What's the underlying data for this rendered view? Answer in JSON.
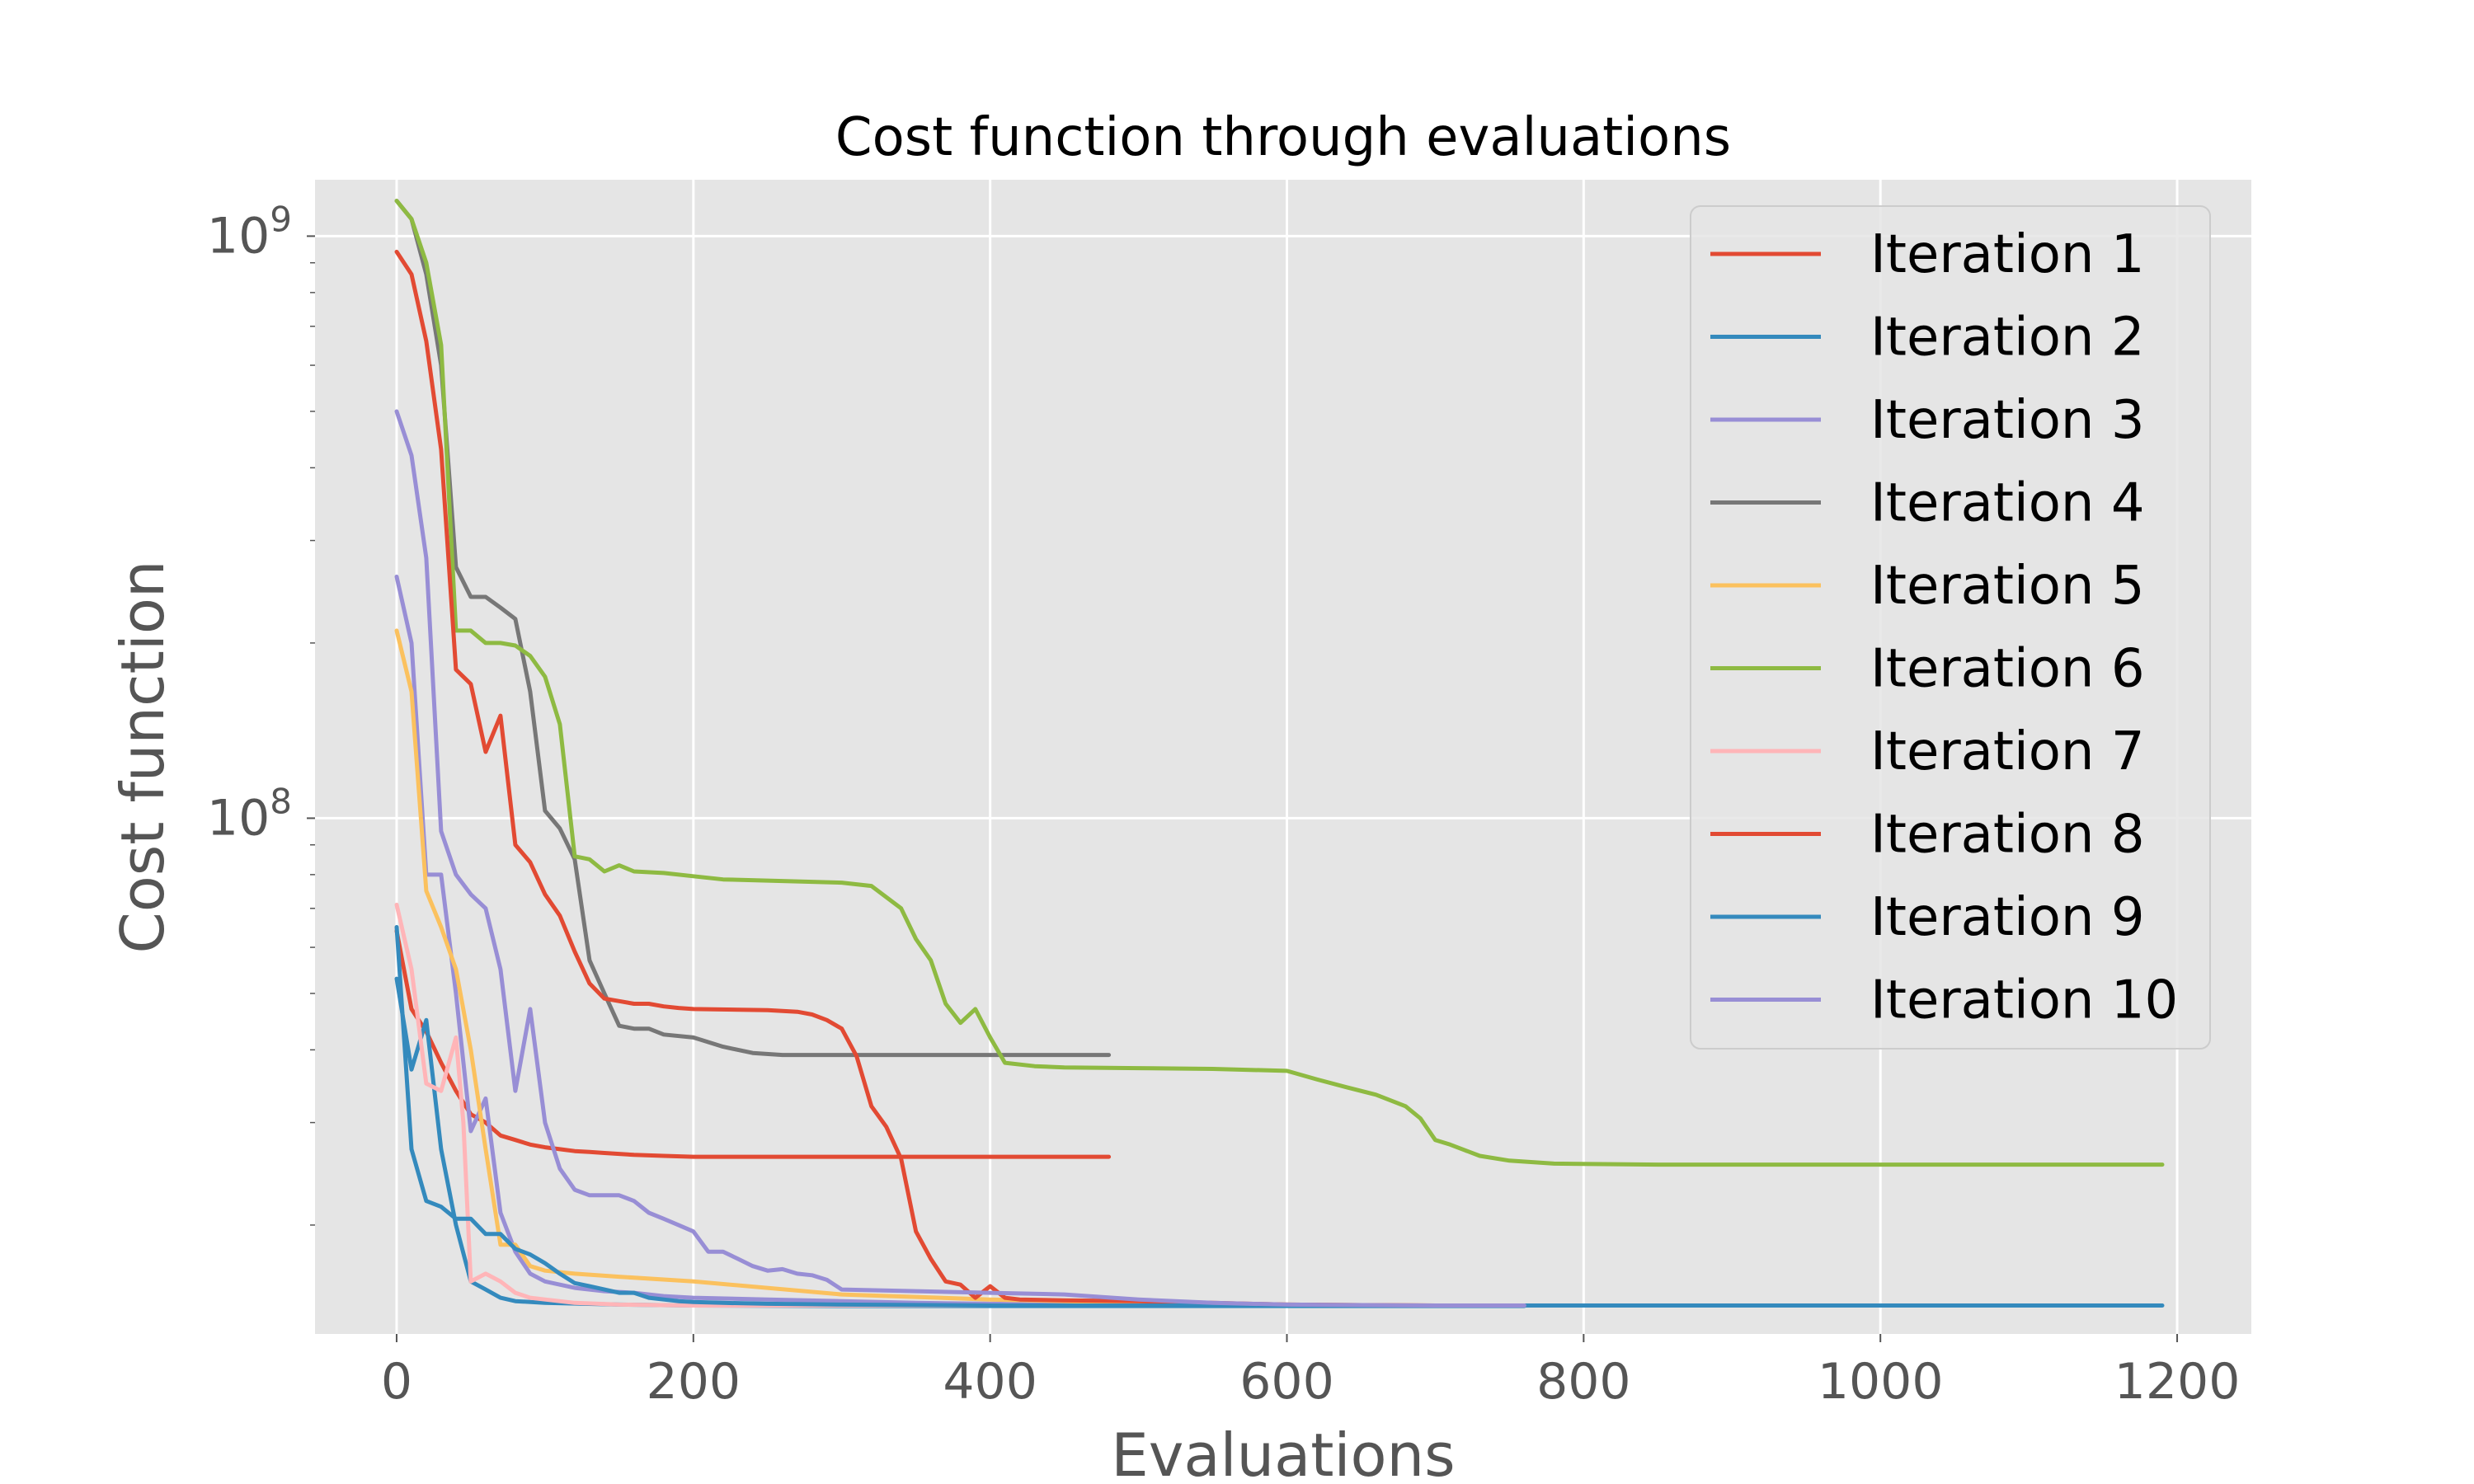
{
  "chart_data": {
    "type": "line",
    "title": "Cost function through evaluations",
    "xlabel": "Evaluations",
    "ylabel": "Cost function",
    "xlim": [
      -55,
      1250
    ],
    "ylim": [
      13000000,
      1250000000
    ],
    "yscale": "log",
    "grid": true,
    "legend_position": "top-right",
    "xticks": [
      {
        "value": 0,
        "label": "0"
      },
      {
        "value": 200,
        "label": "200"
      },
      {
        "value": 400,
        "label": "400"
      },
      {
        "value": 600,
        "label": "600"
      },
      {
        "value": 800,
        "label": "800"
      },
      {
        "value": 1000,
        "label": "1000"
      },
      {
        "value": 1200,
        "label": "1200"
      }
    ],
    "yticks": [
      {
        "value": 100000000,
        "base": "10",
        "exp": "8"
      },
      {
        "value": 1000000000,
        "base": "10",
        "exp": "9"
      }
    ],
    "series": [
      {
        "name": "Iteration 1",
        "color": "#E24A33",
        "x": [
          0,
          10,
          20,
          30,
          40,
          50,
          60,
          70,
          80,
          90,
          100,
          110,
          120,
          130,
          140,
          150,
          160,
          180,
          200,
          250,
          300,
          350,
          400,
          450,
          480
        ],
        "y": [
          64000000,
          47000000,
          43000000,
          38000000,
          34000000,
          31000000,
          30000000,
          28500000,
          28000000,
          27500000,
          27200000,
          27000000,
          26800000,
          26700000,
          26600000,
          26500000,
          26400000,
          26300000,
          26200000,
          26200000,
          26200000,
          26200000,
          26200000,
          26200000,
          26200000
        ]
      },
      {
        "name": "Iteration 2",
        "color": "#348ABD",
        "x": [
          0,
          10,
          20,
          30,
          40,
          50,
          60,
          70,
          80,
          100,
          150,
          200,
          300,
          400,
          500,
          600,
          700,
          760
        ],
        "y": [
          53000000,
          37000000,
          45000000,
          27000000,
          20000000,
          16000000,
          15500000,
          15000000,
          14800000,
          14700000,
          14600000,
          14550000,
          14520000,
          14520000,
          14520000,
          14520000,
          14520000,
          14520000
        ]
      },
      {
        "name": "Iteration 3",
        "color": "#988ED5",
        "x": [
          0,
          10,
          20,
          30,
          40,
          50,
          60,
          70,
          80,
          90,
          100,
          110,
          120,
          140,
          160,
          180,
          200,
          250,
          300,
          350,
          400,
          450,
          490
        ],
        "y": [
          260000000,
          200000000,
          80000000,
          80000000,
          50000000,
          29000000,
          33000000,
          21000000,
          18000000,
          16500000,
          16000000,
          15800000,
          15600000,
          15400000,
          15300000,
          15100000,
          15000000,
          14900000,
          14800000,
          14700000,
          14650000,
          14600000,
          14550000
        ]
      },
      {
        "name": "Iteration 4",
        "color": "#777777",
        "x": [
          0,
          10,
          20,
          30,
          40,
          50,
          60,
          70,
          80,
          90,
          100,
          110,
          120,
          130,
          140,
          150,
          160,
          170,
          180,
          200,
          220,
          240,
          260,
          300,
          350,
          400,
          450,
          480
        ],
        "y": [
          1150000000,
          1070000000,
          860000000,
          600000000,
          270000000,
          240000000,
          240000000,
          230000000,
          220000000,
          165000000,
          103000000,
          96000000,
          85000000,
          57000000,
          50000000,
          44000000,
          43500000,
          43500000,
          42500000,
          42000000,
          40500000,
          39500000,
          39200000,
          39200000,
          39200000,
          39200000,
          39200000,
          39200000
        ]
      },
      {
        "name": "Iteration 5",
        "color": "#FBC15E",
        "x": [
          0,
          10,
          20,
          30,
          40,
          50,
          60,
          70,
          80,
          90,
          100,
          120,
          150,
          200,
          300,
          400,
          500,
          600,
          700,
          760
        ],
        "y": [
          210000000,
          165000000,
          75000000,
          65000000,
          55000000,
          40000000,
          27000000,
          18500000,
          18500000,
          17000000,
          16700000,
          16500000,
          16300000,
          16000000,
          15200000,
          14900000,
          14700000,
          14600000,
          14550000,
          14550000
        ]
      },
      {
        "name": "Iteration 6",
        "color": "#8EBA42",
        "x": [
          0,
          10,
          20,
          30,
          40,
          50,
          60,
          70,
          80,
          90,
          100,
          110,
          120,
          130,
          140,
          150,
          160,
          180,
          200,
          220,
          260,
          300,
          320,
          340,
          350,
          360,
          370,
          380,
          390,
          400,
          410,
          430,
          450,
          500,
          550,
          600,
          620,
          640,
          660,
          680,
          690,
          700,
          710,
          730,
          750,
          780,
          850,
          1000,
          1190
        ],
        "y": [
          1150000000,
          1070000000,
          900000000,
          650000000,
          210000000,
          210000000,
          200000000,
          200000000,
          198000000,
          190000000,
          175000000,
          145000000,
          86000000,
          85000000,
          81000000,
          83000000,
          81000000,
          80500000,
          79500000,
          78500000,
          78000000,
          77500000,
          76500000,
          70000000,
          62000000,
          57000000,
          48000000,
          44500000,
          47000000,
          42000000,
          38000000,
          37500000,
          37300000,
          37200000,
          37100000,
          36800000,
          35600000,
          34500000,
          33500000,
          32000000,
          30500000,
          28000000,
          27500000,
          26300000,
          25800000,
          25500000,
          25400000,
          25400000,
          25400000
        ]
      },
      {
        "name": "Iteration 7",
        "color": "#FFB5B8",
        "x": [
          0,
          10,
          20,
          30,
          40,
          45,
          50,
          60,
          70,
          80,
          90,
          100,
          120,
          150,
          200,
          300,
          400,
          500,
          600,
          700,
          760
        ],
        "y": [
          71000000,
          55000000,
          35000000,
          34000000,
          42000000,
          30000000,
          16000000,
          16500000,
          16000000,
          15300000,
          15000000,
          14900000,
          14700000,
          14600000,
          14550000,
          14550000,
          14550000,
          14550000,
          14550000,
          14550000,
          14550000
        ]
      },
      {
        "name": "Iteration 8",
        "color": "#E24A33",
        "x": [
          0,
          10,
          20,
          30,
          40,
          50,
          60,
          70,
          80,
          90,
          100,
          110,
          120,
          130,
          140,
          150,
          160,
          170,
          180,
          190,
          200,
          250,
          270,
          280,
          290,
          300,
          310,
          320,
          330,
          340,
          350,
          360,
          370,
          380,
          390,
          400,
          410,
          420,
          450,
          500,
          550,
          600,
          700,
          760
        ],
        "y": [
          940000000,
          860000000,
          660000000,
          430000000,
          180000000,
          170000000,
          130000000,
          150000000,
          90000000,
          84000000,
          74000000,
          68000000,
          59000000,
          52000000,
          49000000,
          48500000,
          48000000,
          48000000,
          47500000,
          47200000,
          47000000,
          46800000,
          46500000,
          46000000,
          45000000,
          43500000,
          39000000,
          32000000,
          29500000,
          26000000,
          19500000,
          17500000,
          16000000,
          15800000,
          15000000,
          15700000,
          15000000,
          14900000,
          14850000,
          14800000,
          14700000,
          14600000,
          14550000,
          14550000
        ]
      },
      {
        "name": "Iteration 9",
        "color": "#348ABD",
        "x": [
          0,
          10,
          20,
          30,
          40,
          50,
          60,
          70,
          80,
          90,
          100,
          110,
          120,
          130,
          140,
          150,
          160,
          170,
          180,
          190,
          200,
          220,
          250,
          300,
          400,
          500,
          600,
          800,
          1000,
          1190
        ],
        "y": [
          65000000,
          27000000,
          22000000,
          21500000,
          20500000,
          20500000,
          19300000,
          19300000,
          18200000,
          17800000,
          17200000,
          16500000,
          15900000,
          15700000,
          15500000,
          15300000,
          15300000,
          15000000,
          14900000,
          14800000,
          14750000,
          14700000,
          14650000,
          14600000,
          14550000,
          14550000,
          14550000,
          14550000,
          14550000,
          14550000
        ]
      },
      {
        "name": "Iteration 10",
        "color": "#988ED5",
        "x": [
          0,
          10,
          20,
          30,
          40,
          50,
          60,
          70,
          80,
          90,
          100,
          110,
          120,
          130,
          140,
          150,
          160,
          170,
          180,
          190,
          200,
          210,
          220,
          230,
          240,
          250,
          260,
          270,
          280,
          290,
          300,
          350,
          400,
          450,
          500,
          550,
          600,
          700,
          760
        ],
        "y": [
          500000000,
          420000000,
          280000000,
          95000000,
          80000000,
          74000000,
          70000000,
          55000000,
          34000000,
          47000000,
          30000000,
          25000000,
          23000000,
          22500000,
          22500000,
          22500000,
          22000000,
          21000000,
          20500000,
          20000000,
          19500000,
          18000000,
          18000000,
          17500000,
          17000000,
          16700000,
          16800000,
          16500000,
          16400000,
          16100000,
          15500000,
          15400000,
          15300000,
          15200000,
          14900000,
          14700000,
          14600000,
          14550000,
          14550000
        ]
      }
    ]
  }
}
